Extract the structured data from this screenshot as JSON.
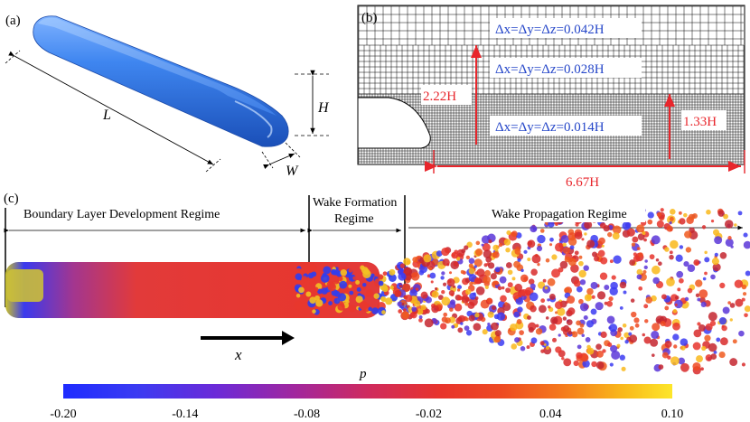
{
  "panel_labels": {
    "a": "(a)",
    "b": "(b)",
    "c": "(c)"
  },
  "panel_a": {
    "length_label": "L",
    "height_label": "H",
    "width_label": "W",
    "body_color": "#3d7fe8"
  },
  "panel_b": {
    "spacing_coarse": "Δx=Δy=Δz=0.042H",
    "spacing_medium": "Δx=Δy=Δz=0.028H",
    "spacing_fine": "Δx=Δy=Δz=0.014H",
    "dim_height_upper": "2.22H",
    "dim_height_lower": "1.33H",
    "dim_length": "6.67H",
    "dim_color": "#e8262c",
    "spacing_text_color": "#2647c9"
  },
  "panel_c": {
    "regimes": [
      "Boundary Layer Development Regime",
      "Wake Formation",
      "Regime",
      "Wake Propagation Regime"
    ],
    "axis_label": "x"
  },
  "colorbar": {
    "title": "p",
    "tick_labels": [
      "-0.20",
      "-0.14",
      "-0.08",
      "-0.02",
      "0.04",
      "0.10"
    ],
    "range": [
      -0.2,
      0.1
    ],
    "colors": [
      "#1e2bff",
      "#3b3bf2",
      "#6b2ad8",
      "#a1279e",
      "#cf2a5e",
      "#e8342c",
      "#ee4a22",
      "#f57a1c",
      "#f9b91b",
      "#fde62a"
    ]
  }
}
